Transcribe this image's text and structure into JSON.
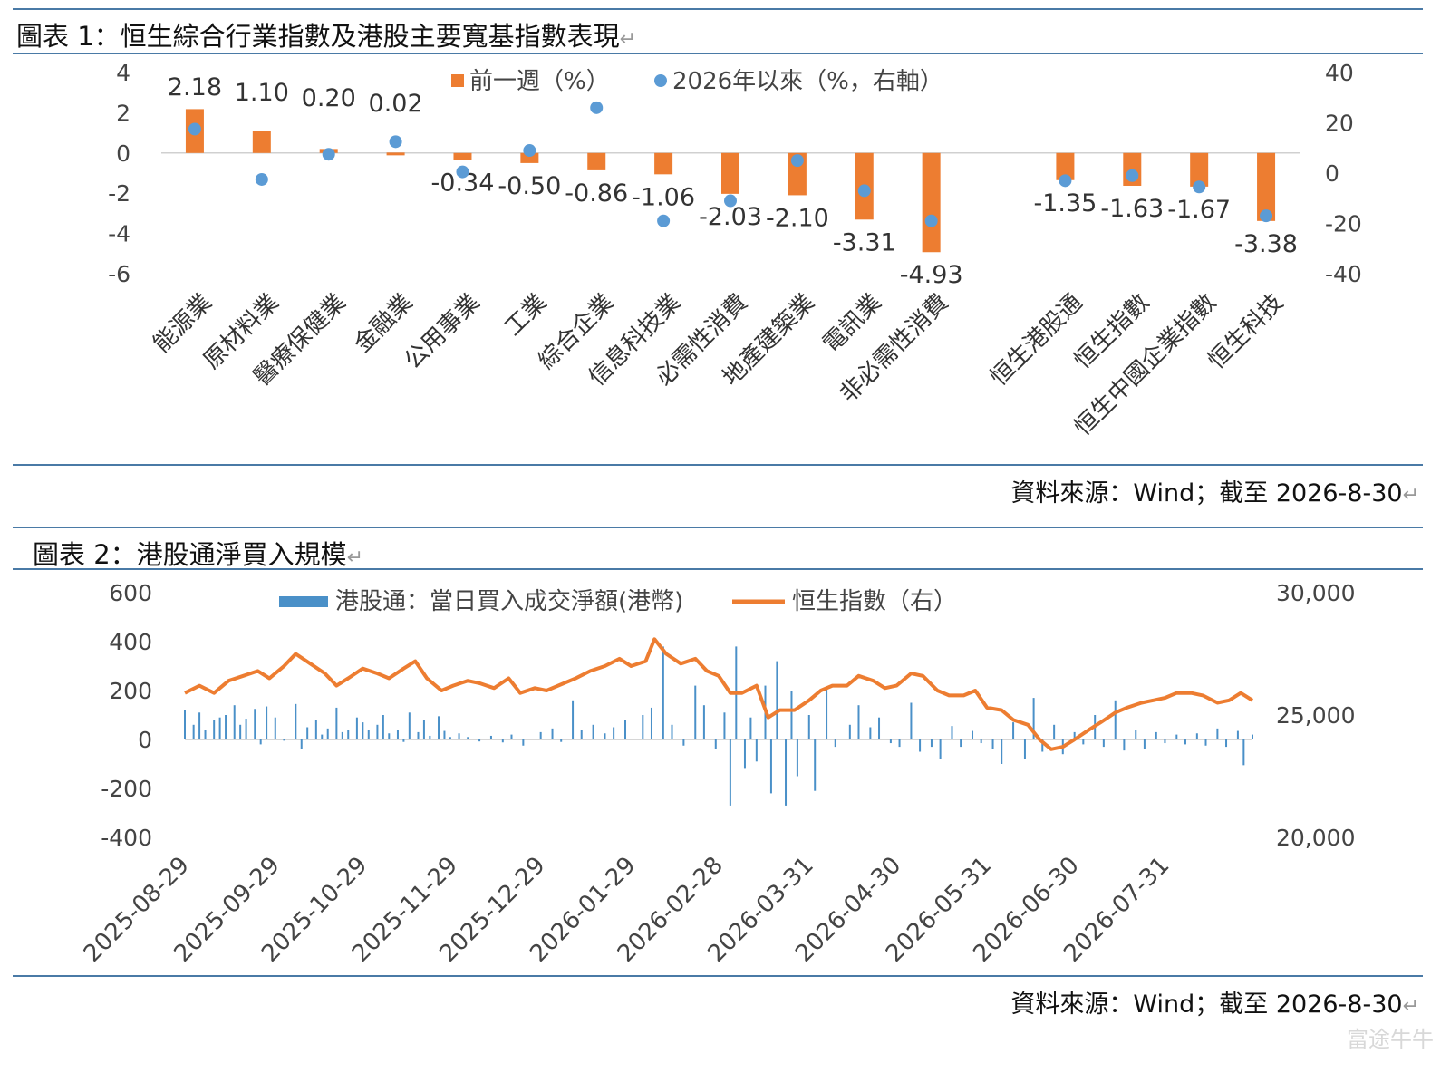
{
  "chart1": {
    "title": "圖表 1：恒生綜合行業指數及港股主要寬基指數表現",
    "source": "資料來源：Wind；截至 2026-8-30",
    "chart_data": {
      "type": "bar",
      "categories": [
        "能源業",
        "原材料業",
        "醫療保健業",
        "金融業",
        "公用事業",
        "工業",
        "綜合企業",
        "信息科技業",
        "必需性消費",
        "地產建築業",
        "電訊業",
        "非必需性消費",
        "",
        "恒生港股通",
        "恒生指數",
        "恒生中國企業指數",
        "恒生科技"
      ],
      "series": [
        {
          "name": "前一週（%）",
          "type": "bar",
          "axis": "left",
          "values": [
            2.18,
            1.1,
            0.2,
            0.02,
            -0.34,
            -0.5,
            -0.86,
            -1.06,
            -2.03,
            -2.1,
            -3.31,
            -4.93,
            null,
            -1.35,
            -1.63,
            -1.67,
            -3.38
          ],
          "labels": [
            "2.18",
            "1.10",
            "0.20",
            "0.02",
            "-0.34",
            "-0.50",
            "-0.86",
            "-1.06",
            "-2.03",
            "-2.10",
            "-3.31",
            "-4.93",
            "",
            "-1.35",
            "-1.63",
            "-1.67",
            "-3.38"
          ]
        },
        {
          "name": "2026年以來（%，右軸）",
          "type": "scatter",
          "axis": "right",
          "values": [
            17.5,
            -2.5,
            7.5,
            12.5,
            0.5,
            9,
            26,
            -19,
            -11,
            5,
            -7,
            -19,
            null,
            -3,
            -1,
            -5.5,
            -17
          ]
        }
      ],
      "ylim_left": [
        -6,
        4
      ],
      "yticks_left": [
        "4",
        "2",
        "0",
        "-2",
        "-4",
        "-6"
      ],
      "ylim_right": [
        -40,
        40
      ],
      "yticks_right": [
        "40",
        "20",
        "0",
        "-20",
        "-40"
      ],
      "legend": "top-center",
      "colors": {
        "bar": "#ed7d31",
        "dot": "#5b9bd5"
      }
    }
  },
  "chart2": {
    "title": "圖表 2：港股通淨買入規模",
    "source": "資料來源：Wind；截至 2026-8-30",
    "chart_data": {
      "type": "bar",
      "series": [
        {
          "name": "港股通：當日買入成交淨額(港幣)",
          "type": "bar",
          "axis": "left"
        },
        {
          "name": "恒生指數（右）",
          "type": "line",
          "axis": "right"
        }
      ],
      "x_start": "2025-08-29",
      "x_end": "2026-08-30",
      "xticks": [
        "2025-08-29",
        "2025-09-29",
        "2025-10-29",
        "2025-11-29",
        "2025-12-29",
        "2026-01-29",
        "2026-02-28",
        "2026-03-31",
        "2026-04-30",
        "2026-05-31",
        "2026-06-30",
        "2026-07-31"
      ],
      "ylim_left": [
        -400,
        600
      ],
      "yticks_left": [
        "600",
        "400",
        "200",
        "0",
        "-200",
        "-400"
      ],
      "ylim_right": [
        20000,
        30000
      ],
      "yticks_right": [
        "30,000",
        "25,000",
        "20,000"
      ],
      "line_points": [
        [
          "2025-08-29",
          25900
        ],
        [
          "2025-09-03",
          26200
        ],
        [
          "2025-09-08",
          25900
        ],
        [
          "2025-09-13",
          26400
        ],
        [
          "2025-09-18",
          26600
        ],
        [
          "2025-09-23",
          26800
        ],
        [
          "2025-09-27",
          26500
        ],
        [
          "2025-10-02",
          27000
        ],
        [
          "2025-10-06",
          27500
        ],
        [
          "2025-10-11",
          27100
        ],
        [
          "2025-10-16",
          26700
        ],
        [
          "2025-10-20",
          26200
        ],
        [
          "2025-10-24",
          26500
        ],
        [
          "2025-10-29",
          26900
        ],
        [
          "2025-11-03",
          26700
        ],
        [
          "2025-11-07",
          26500
        ],
        [
          "2025-11-12",
          26900
        ],
        [
          "2025-11-16",
          27200
        ],
        [
          "2025-11-20",
          26500
        ],
        [
          "2025-11-25",
          26000
        ],
        [
          "2025-11-29",
          26200
        ],
        [
          "2025-12-04",
          26400
        ],
        [
          "2025-12-08",
          26300
        ],
        [
          "2025-12-13",
          26100
        ],
        [
          "2025-12-18",
          26500
        ],
        [
          "2025-12-22",
          25900
        ],
        [
          "2025-12-27",
          26100
        ],
        [
          "2025-12-31",
          26000
        ],
        [
          "2026-01-06",
          26300
        ],
        [
          "2026-01-10",
          26500
        ],
        [
          "2026-01-15",
          26800
        ],
        [
          "2026-01-20",
          27000
        ],
        [
          "2026-01-25",
          27300
        ],
        [
          "2026-01-29",
          27000
        ],
        [
          "2026-02-03",
          27200
        ],
        [
          "2026-02-06",
          28100
        ],
        [
          "2026-02-10",
          27500
        ],
        [
          "2026-02-15",
          27100
        ],
        [
          "2026-02-20",
          27300
        ],
        [
          "2026-02-24",
          26800
        ],
        [
          "2026-02-28",
          26600
        ],
        [
          "2026-03-04",
          25900
        ],
        [
          "2026-03-08",
          25900
        ],
        [
          "2026-03-13",
          26200
        ],
        [
          "2026-03-17",
          24900
        ],
        [
          "2026-03-21",
          25200
        ],
        [
          "2026-03-26",
          25200
        ],
        [
          "2026-03-31",
          25600
        ],
        [
          "2026-04-04",
          26000
        ],
        [
          "2026-04-08",
          26200
        ],
        [
          "2026-04-13",
          26200
        ],
        [
          "2026-04-17",
          26600
        ],
        [
          "2026-04-22",
          26400
        ],
        [
          "2026-04-26",
          26100
        ],
        [
          "2026-04-30",
          26200
        ],
        [
          "2026-05-05",
          26700
        ],
        [
          "2026-05-09",
          26600
        ],
        [
          "2026-05-14",
          26000
        ],
        [
          "2026-05-18",
          25800
        ],
        [
          "2026-05-23",
          25800
        ],
        [
          "2026-05-27",
          26000
        ],
        [
          "2026-05-31",
          25300
        ],
        [
          "2026-06-05",
          25200
        ],
        [
          "2026-06-09",
          24800
        ],
        [
          "2026-06-14",
          24600
        ],
        [
          "2026-06-18",
          24000
        ],
        [
          "2026-06-22",
          23600
        ],
        [
          "2026-06-26",
          23700
        ],
        [
          "2026-06-30",
          24000
        ],
        [
          "2026-07-05",
          24400
        ],
        [
          "2026-07-09",
          24700
        ],
        [
          "2026-07-14",
          25100
        ],
        [
          "2026-07-18",
          25300
        ],
        [
          "2026-07-23",
          25500
        ],
        [
          "2026-07-27",
          25600
        ],
        [
          "2026-07-31",
          25700
        ],
        [
          "2026-08-04",
          25900
        ],
        [
          "2026-08-09",
          25900
        ],
        [
          "2026-08-13",
          25800
        ],
        [
          "2026-08-18",
          25500
        ],
        [
          "2026-08-22",
          25600
        ],
        [
          "2026-08-26",
          25900
        ],
        [
          "2026-08-30",
          25600
        ]
      ],
      "bars": [
        [
          "2025-08-29",
          120
        ],
        [
          "2025-09-01",
          60
        ],
        [
          "2025-09-03",
          110
        ],
        [
          "2025-09-05",
          40
        ],
        [
          "2025-09-08",
          80
        ],
        [
          "2025-09-10",
          90
        ],
        [
          "2025-09-12",
          100
        ],
        [
          "2025-09-15",
          140
        ],
        [
          "2025-09-17",
          60
        ],
        [
          "2025-09-19",
          85
        ],
        [
          "2025-09-22",
          125
        ],
        [
          "2025-09-24",
          -20
        ],
        [
          "2025-09-26",
          135
        ],
        [
          "2025-09-29",
          90
        ],
        [
          "2025-10-02",
          -5
        ],
        [
          "2025-10-06",
          145
        ],
        [
          "2025-10-08",
          -40
        ],
        [
          "2025-10-10",
          50
        ],
        [
          "2025-10-13",
          80
        ],
        [
          "2025-10-15",
          20
        ],
        [
          "2025-10-17",
          45
        ],
        [
          "2025-10-20",
          130
        ],
        [
          "2025-10-22",
          30
        ],
        [
          "2025-10-24",
          40
        ],
        [
          "2025-10-27",
          90
        ],
        [
          "2025-10-29",
          70
        ],
        [
          "2025-10-31",
          40
        ],
        [
          "2025-11-03",
          60
        ],
        [
          "2025-11-05",
          100
        ],
        [
          "2025-11-07",
          25
        ],
        [
          "2025-11-10",
          40
        ],
        [
          "2025-11-12",
          -10
        ],
        [
          "2025-11-14",
          110
        ],
        [
          "2025-11-17",
          30
        ],
        [
          "2025-11-19",
          80
        ],
        [
          "2025-11-21",
          15
        ],
        [
          "2025-11-24",
          95
        ],
        [
          "2025-11-26",
          35
        ],
        [
          "2025-11-28",
          10
        ],
        [
          "2025-12-01",
          25
        ],
        [
          "2025-12-04",
          10
        ],
        [
          "2025-12-08",
          -8
        ],
        [
          "2025-12-12",
          15
        ],
        [
          "2025-12-16",
          -12
        ],
        [
          "2025-12-19",
          20
        ],
        [
          "2025-12-23",
          -25
        ],
        [
          "2025-12-29",
          30
        ],
        [
          "2026-01-02",
          45
        ],
        [
          "2026-01-05",
          -10
        ],
        [
          "2026-01-09",
          160
        ],
        [
          "2026-01-12",
          40
        ],
        [
          "2026-01-16",
          60
        ],
        [
          "2026-01-20",
          25
        ],
        [
          "2026-01-23",
          50
        ],
        [
          "2026-01-27",
          80
        ],
        [
          "2026-02-02",
          100
        ],
        [
          "2026-02-05",
          130
        ],
        [
          "2026-02-09",
          380
        ],
        [
          "2026-02-12",
          60
        ],
        [
          "2026-02-16",
          -25
        ],
        [
          "2026-02-20",
          220
        ],
        [
          "2026-02-23",
          140
        ],
        [
          "2026-02-27",
          -40
        ],
        [
          "2026-03-02",
          110
        ],
        [
          "2026-03-04",
          -270
        ],
        [
          "2026-03-06",
          380
        ],
        [
          "2026-03-09",
          -120
        ],
        [
          "2026-03-11",
          90
        ],
        [
          "2026-03-13",
          -90
        ],
        [
          "2026-03-16",
          220
        ],
        [
          "2026-03-18",
          -220
        ],
        [
          "2026-03-20",
          320
        ],
        [
          "2026-03-23",
          -270
        ],
        [
          "2026-03-25",
          200
        ],
        [
          "2026-03-27",
          -150
        ],
        [
          "2026-03-31",
          100
        ],
        [
          "2026-04-02",
          -210
        ],
        [
          "2026-04-06",
          210
        ],
        [
          "2026-04-09",
          -30
        ],
        [
          "2026-04-14",
          60
        ],
        [
          "2026-04-17",
          140
        ],
        [
          "2026-04-21",
          50
        ],
        [
          "2026-04-24",
          90
        ],
        [
          "2026-04-28",
          -15
        ],
        [
          "2026-05-01",
          -30
        ],
        [
          "2026-05-05",
          150
        ],
        [
          "2026-05-08",
          -50
        ],
        [
          "2026-05-12",
          -30
        ],
        [
          "2026-05-15",
          -80
        ],
        [
          "2026-05-19",
          55
        ],
        [
          "2026-05-22",
          -30
        ],
        [
          "2026-05-26",
          35
        ],
        [
          "2026-05-29",
          -15
        ],
        [
          "2026-06-02",
          -40
        ],
        [
          "2026-06-05",
          -100
        ],
        [
          "2026-06-09",
          70
        ],
        [
          "2026-06-13",
          -80
        ],
        [
          "2026-06-16",
          170
        ],
        [
          "2026-06-19",
          -50
        ],
        [
          "2026-06-23",
          60
        ],
        [
          "2026-06-26",
          -60
        ],
        [
          "2026-06-30",
          30
        ],
        [
          "2026-07-03",
          -20
        ],
        [
          "2026-07-07",
          100
        ],
        [
          "2026-07-10",
          -30
        ],
        [
          "2026-07-14",
          160
        ],
        [
          "2026-07-17",
          -45
        ],
        [
          "2026-07-21",
          40
        ],
        [
          "2026-07-24",
          -40
        ],
        [
          "2026-07-28",
          30
        ],
        [
          "2026-07-31",
          -15
        ],
        [
          "2026-08-04",
          20
        ],
        [
          "2026-08-07",
          -20
        ],
        [
          "2026-08-11",
          25
        ],
        [
          "2026-08-14",
          -25
        ],
        [
          "2026-08-18",
          45
        ],
        [
          "2026-08-21",
          -30
        ],
        [
          "2026-08-25",
          35
        ],
        [
          "2026-08-27",
          -105
        ],
        [
          "2026-08-30",
          20
        ]
      ],
      "legend": "top-center",
      "colors": {
        "bar": "#4a90c8",
        "line": "#ed7d31"
      }
    }
  },
  "watermark": "富途牛牛"
}
